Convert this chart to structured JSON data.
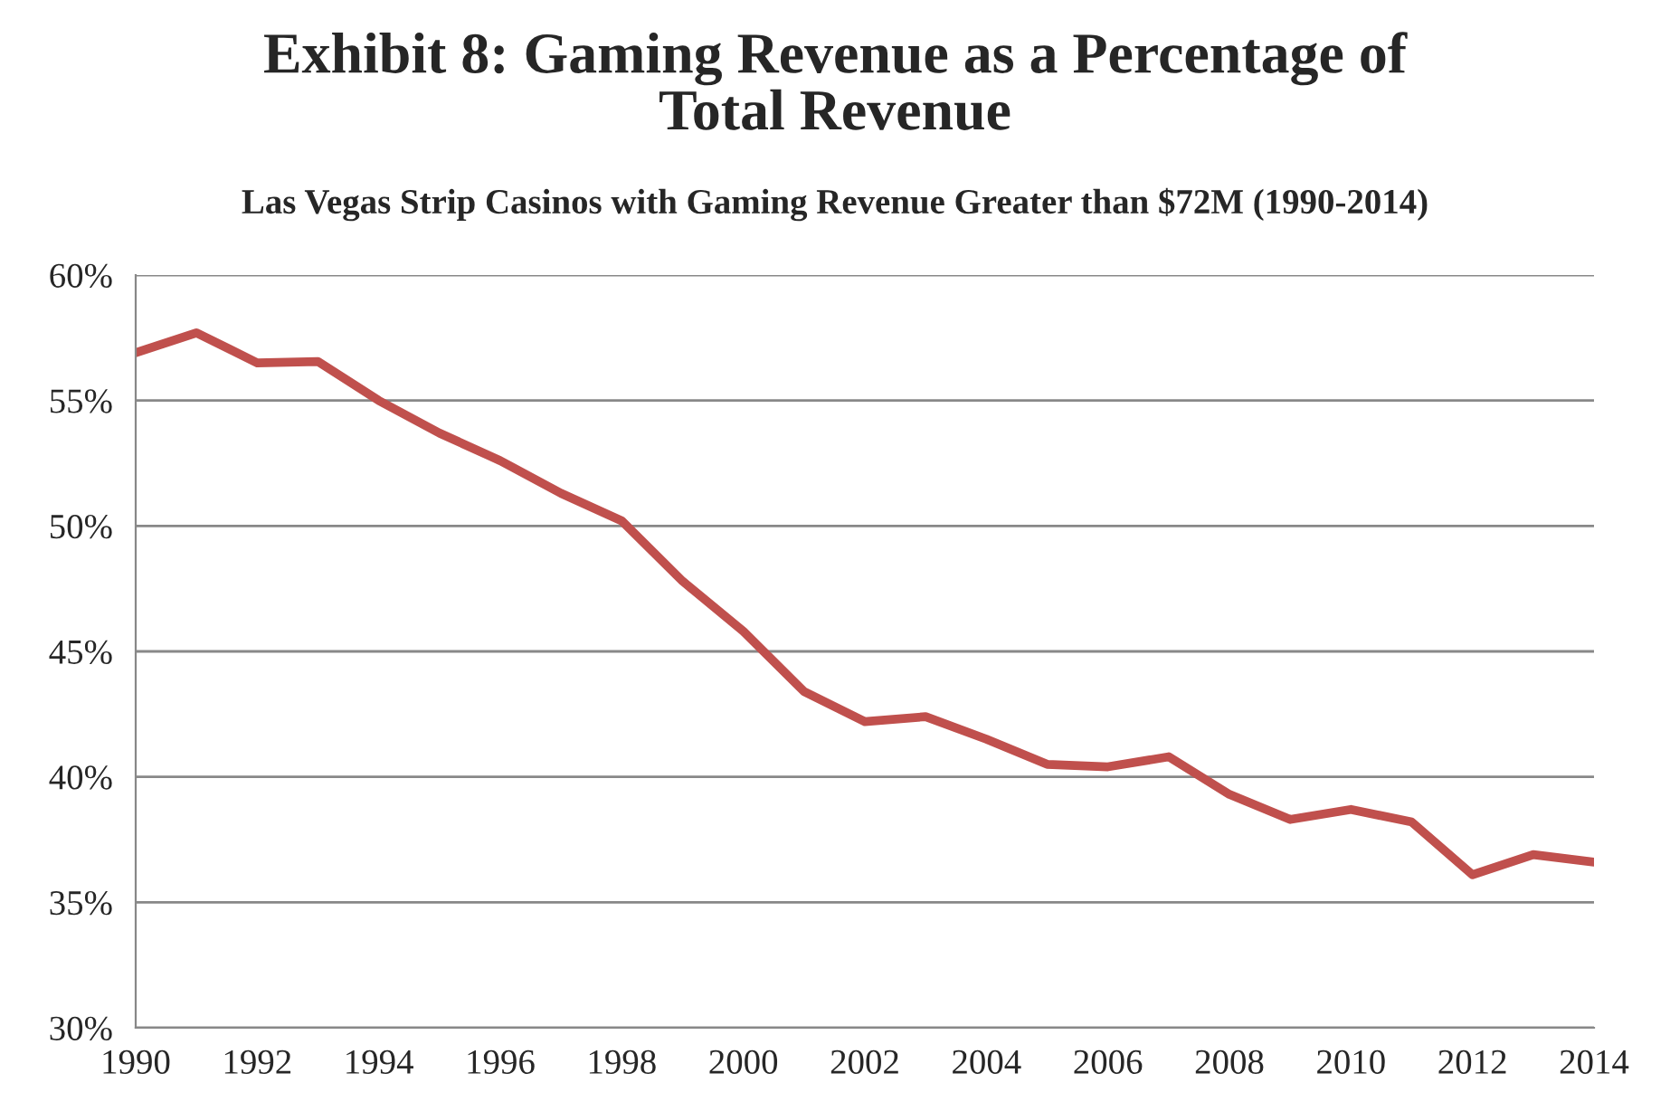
{
  "chart_data": {
    "type": "line",
    "title": "Exhibit 8: Gaming Revenue as a Percentage of\nTotal Revenue",
    "subtitle": "Las Vegas Strip Casinos with Gaming Revenue Greater than $72M (1990-2014)",
    "x": [
      1990,
      1991,
      1992,
      1993,
      1994,
      1995,
      1996,
      1997,
      1998,
      1999,
      2000,
      2001,
      2002,
      2003,
      2004,
      2005,
      2006,
      2007,
      2008,
      2009,
      2010,
      2011,
      2012,
      2013,
      2014
    ],
    "series": [
      {
        "color": "#c0504d",
        "values": [
          56.9,
          57.7,
          56.5,
          56.55,
          55.0,
          53.7,
          52.6,
          51.3,
          50.2,
          47.8,
          45.8,
          43.4,
          42.2,
          42.4,
          41.5,
          40.5,
          40.4,
          40.8,
          39.3,
          38.3,
          38.7,
          38.2,
          36.1,
          36.9,
          36.6
        ]
      }
    ],
    "xlim": [
      1990,
      2014
    ],
    "xticks": [
      1990,
      1992,
      1994,
      1996,
      1998,
      2000,
      2002,
      2004,
      2006,
      2008,
      2010,
      2012,
      2014
    ],
    "ylim": [
      30,
      60
    ],
    "yticks": [
      {
        "value": 30,
        "label": "30%"
      },
      {
        "value": 35,
        "label": "35%"
      },
      {
        "value": 40,
        "label": "40%"
      },
      {
        "value": 45,
        "label": "45%"
      },
      {
        "value": 50,
        "label": "50%"
      },
      {
        "value": 55,
        "label": "55%"
      },
      {
        "value": 60,
        "label": "60%"
      }
    ],
    "grid": "y",
    "marker": "none",
    "line_style": "solid"
  }
}
